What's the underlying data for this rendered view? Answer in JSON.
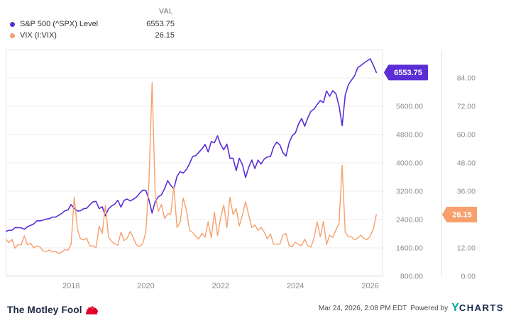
{
  "legend": {
    "val_header": "VAL",
    "series": [
      {
        "label": "S&P 500 (^SPX) Level",
        "value": "6553.75",
        "color": "#5b2ed5"
      },
      {
        "label": "VIX (I:VIX)",
        "value": "26.15",
        "color": "#f7a06d"
      }
    ]
  },
  "badges": {
    "sp500": "6553.75",
    "vix": "26.15"
  },
  "footer": {
    "brand": "The Motley Fool",
    "timestamp": "Mar 24, 2026, 2:08 PM EDT",
    "powered_by": "Powered by",
    "provider_y": "Y",
    "provider_rest": "CHARTS"
  },
  "chart_data": {
    "type": "line",
    "title": "S&P 500 Level vs VIX",
    "interval": "monthly",
    "start": "2016-04",
    "end": "2026-03",
    "x_start": 2016.25,
    "grid": true,
    "legend_position": "top-left",
    "x_axis": {
      "range": [
        2016.25,
        2026.35
      ],
      "tick_values": [
        2018,
        2020,
        2022,
        2024,
        2026
      ],
      "tick_labels": [
        "2018",
        "2020",
        "2022",
        "2024",
        "2026"
      ]
    },
    "y_axes": {
      "sp500": {
        "range": [
          800,
          7200
        ],
        "tick_values": [
          800,
          1600,
          2400,
          3200,
          4000,
          4800,
          5600
        ],
        "tick_labels": [
          "800.00",
          "1600.00",
          "2400.00",
          "3200.00",
          "4000.00",
          "4800.00",
          "5600.00"
        ]
      },
      "vix": {
        "range": [
          0,
          96
        ],
        "tick_values": [
          0,
          12,
          24,
          36,
          48,
          60,
          72,
          84
        ],
        "tick_labels": [
          "0.00",
          "12.00",
          "24.00",
          "36.00",
          "48.00",
          "60.00",
          "72.00",
          "84.00"
        ]
      }
    },
    "series": [
      {
        "name": "S&P 500 (^SPX) Level",
        "axis": "sp500",
        "color": "#5b2ed5",
        "width": 1.6,
        "last_value": 6553.75,
        "values": [
          2065,
          2097,
          2099,
          2174,
          2171,
          2168,
          2126,
          2199,
          2239,
          2279,
          2364,
          2363,
          2384,
          2412,
          2423,
          2470,
          2472,
          2519,
          2575,
          2648,
          2674,
          2824,
          2714,
          2641,
          2648,
          2705,
          2718,
          2816,
          2902,
          2914,
          2712,
          2760,
          2507,
          2704,
          2785,
          2834,
          2946,
          2752,
          2942,
          2980,
          2926,
          2977,
          3038,
          3141,
          3231,
          3226,
          2954,
          2585,
          2912,
          3044,
          3100,
          3271,
          3500,
          3363,
          3270,
          3622,
          3756,
          3714,
          3811,
          3973,
          4181,
          4204,
          4298,
          4395,
          4523,
          4308,
          4605,
          4567,
          4766,
          4516,
          4374,
          4530,
          4132,
          4132,
          3785,
          4130,
          3955,
          3586,
          3872,
          4080,
          3840,
          4077,
          3970,
          4109,
          4169,
          4180,
          4450,
          4589,
          4508,
          4288,
          4194,
          4568,
          4770,
          4846,
          5096,
          5254,
          5036,
          5278,
          5460,
          5522,
          5648,
          5762,
          5705,
          6032,
          5882,
          6041,
          5955,
          5612,
          5050,
          5912,
          6205,
          6339,
          6460,
          6688,
          6750,
          6820,
          6880,
          6940,
          6760,
          6553.75
        ]
      },
      {
        "name": "VIX (I:VIX)",
        "axis": "vix",
        "color": "#f7a06d",
        "width": 1.4,
        "last_value": 26.15,
        "values": [
          15.7,
          14.2,
          15.6,
          11.9,
          13.4,
          13.3,
          17.1,
          13.3,
          14.0,
          12.0,
          12.9,
          12.4,
          10.8,
          10.4,
          11.2,
          10.3,
          10.6,
          9.5,
          10.2,
          11.3,
          11.0,
          13.5,
          33.5,
          20.0,
          15.9,
          15.4,
          16.1,
          12.8,
          12.9,
          12.1,
          21.2,
          18.1,
          30.1,
          16.6,
          14.8,
          13.7,
          13.1,
          18.7,
          15.1,
          16.1,
          19.0,
          16.2,
          13.2,
          12.6,
          13.8,
          18.8,
          40.1,
          82.0,
          34.2,
          27.5,
          30.4,
          24.5,
          26.4,
          26.4,
          38.0,
          20.6,
          22.8,
          33.1,
          28.0,
          19.4,
          18.6,
          16.8,
          15.8,
          18.2,
          16.5,
          23.1,
          16.3,
          27.2,
          17.2,
          24.8,
          30.2,
          20.6,
          33.4,
          26.2,
          28.7,
          21.3,
          25.9,
          31.6,
          25.9,
          20.6,
          21.7,
          19.4,
          20.7,
          18.7,
          15.8,
          17.9,
          13.6,
          13.6,
          13.6,
          17.5,
          18.1,
          12.9,
          12.5,
          14.4,
          13.4,
          13.0,
          15.7,
          12.9,
          12.4,
          16.4,
          23.0,
          16.7,
          23.2,
          13.5,
          17.4,
          16.4,
          19.6,
          22.3,
          47.0,
          18.6,
          16.7,
          16.7,
          15.4,
          16.1,
          17.4,
          16.0,
          15.5,
          17.0,
          20.0,
          26.15
        ]
      }
    ]
  }
}
